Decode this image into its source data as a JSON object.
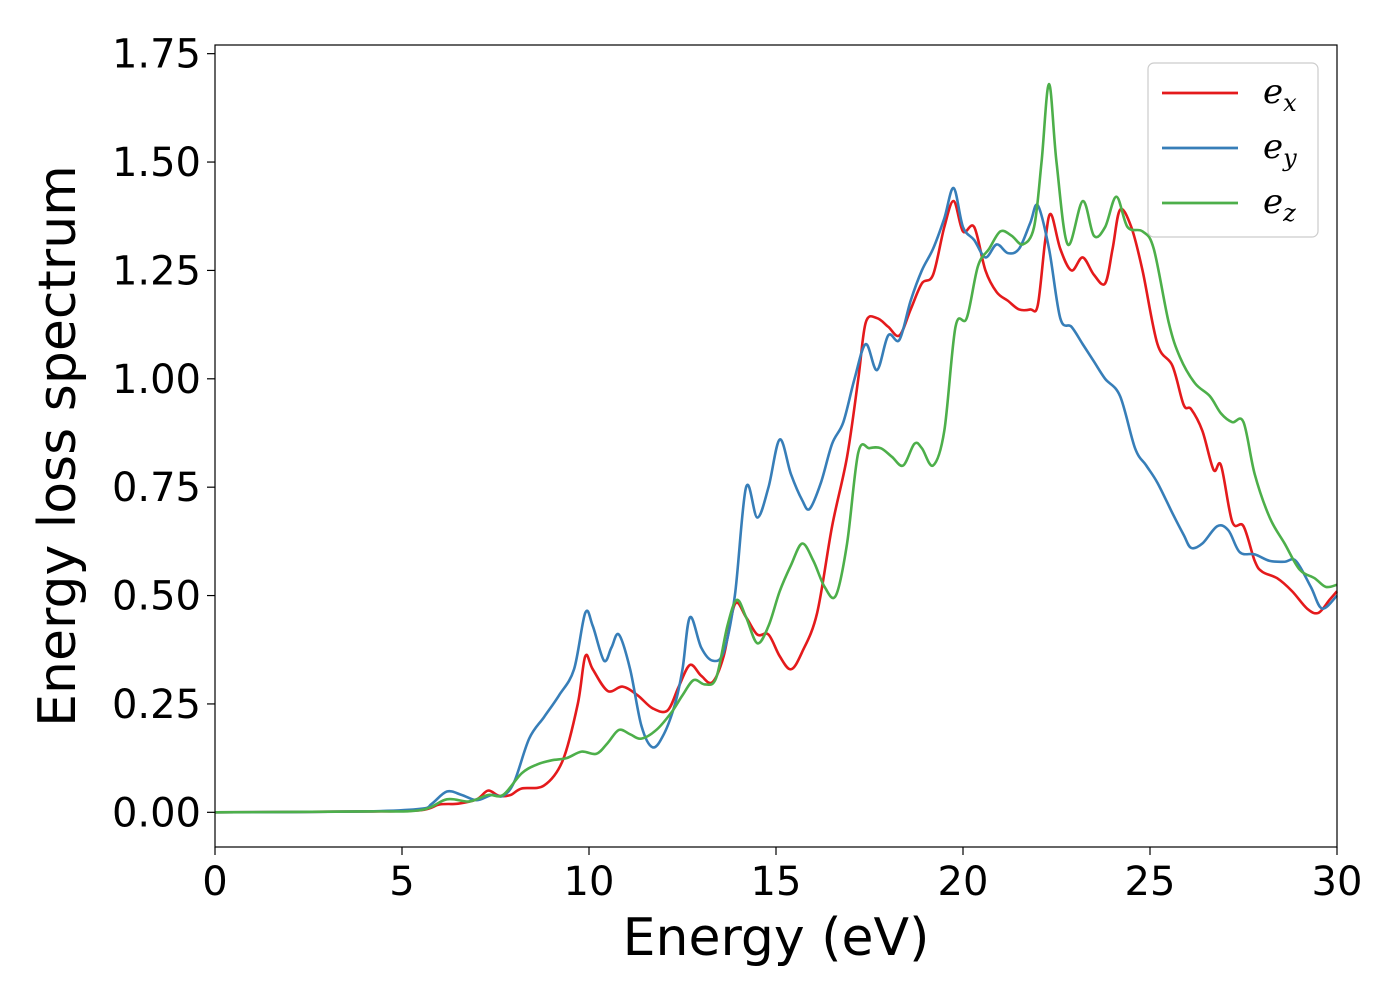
{
  "chart_data": {
    "type": "line",
    "title": "",
    "xlabel": "Energy (eV)",
    "ylabel": "Energy loss spectrum",
    "xlim": [
      0,
      30
    ],
    "ylim": [
      -0.08,
      1.77
    ],
    "xticks": [
      0,
      5,
      10,
      15,
      20,
      25,
      30
    ],
    "xtick_labels": [
      "0",
      "5",
      "10",
      "15",
      "20",
      "25",
      "30"
    ],
    "yticks": [
      0.0,
      0.25,
      0.5,
      0.75,
      1.0,
      1.25,
      1.5,
      1.75
    ],
    "ytick_labels": [
      "0.00",
      "0.25",
      "0.50",
      "0.75",
      "1.00",
      "1.25",
      "1.50",
      "1.75"
    ],
    "grid": false,
    "legend_position": "top-right",
    "series": [
      {
        "name": "e_x",
        "legend_base": "e",
        "legend_sub": "x",
        "color": "#e41a1c",
        "points": [
          [
            0,
            0
          ],
          [
            4,
            0.002
          ],
          [
            5.5,
            0.005
          ],
          [
            6,
            0.018
          ],
          [
            6.5,
            0.02
          ],
          [
            7,
            0.03
          ],
          [
            7.3,
            0.05
          ],
          [
            7.6,
            0.038
          ],
          [
            7.9,
            0.04
          ],
          [
            8.2,
            0.055
          ],
          [
            8.8,
            0.062
          ],
          [
            9.3,
            0.12
          ],
          [
            9.7,
            0.25
          ],
          [
            9.9,
            0.36
          ],
          [
            10.1,
            0.33
          ],
          [
            10.5,
            0.28
          ],
          [
            10.9,
            0.29
          ],
          [
            11.3,
            0.27
          ],
          [
            11.7,
            0.24
          ],
          [
            12.1,
            0.235
          ],
          [
            12.4,
            0.29
          ],
          [
            12.7,
            0.34
          ],
          [
            13.0,
            0.315
          ],
          [
            13.3,
            0.3
          ],
          [
            13.6,
            0.36
          ],
          [
            13.9,
            0.48
          ],
          [
            14.2,
            0.45
          ],
          [
            14.5,
            0.41
          ],
          [
            14.8,
            0.41
          ],
          [
            15.1,
            0.36
          ],
          [
            15.4,
            0.33
          ],
          [
            15.7,
            0.37
          ],
          [
            16.1,
            0.46
          ],
          [
            16.5,
            0.66
          ],
          [
            16.9,
            0.82
          ],
          [
            17.2,
            1.0
          ],
          [
            17.4,
            1.13
          ],
          [
            17.7,
            1.14
          ],
          [
            18.0,
            1.12
          ],
          [
            18.3,
            1.1
          ],
          [
            18.6,
            1.16
          ],
          [
            18.9,
            1.22
          ],
          [
            19.2,
            1.24
          ],
          [
            19.5,
            1.35
          ],
          [
            19.75,
            1.41
          ],
          [
            20.0,
            1.34
          ],
          [
            20.3,
            1.35
          ],
          [
            20.6,
            1.25
          ],
          [
            20.9,
            1.2
          ],
          [
            21.2,
            1.18
          ],
          [
            21.5,
            1.16
          ],
          [
            21.8,
            1.16
          ],
          [
            22.0,
            1.17
          ],
          [
            22.2,
            1.32
          ],
          [
            22.35,
            1.38
          ],
          [
            22.6,
            1.3
          ],
          [
            22.9,
            1.25
          ],
          [
            23.2,
            1.28
          ],
          [
            23.5,
            1.24
          ],
          [
            23.8,
            1.22
          ],
          [
            24.0,
            1.3
          ],
          [
            24.2,
            1.39
          ],
          [
            24.5,
            1.35
          ],
          [
            24.8,
            1.25
          ],
          [
            25.2,
            1.08
          ],
          [
            25.6,
            1.03
          ],
          [
            25.9,
            0.94
          ],
          [
            26.1,
            0.93
          ],
          [
            26.4,
            0.88
          ],
          [
            26.7,
            0.79
          ],
          [
            26.9,
            0.8
          ],
          [
            27.2,
            0.67
          ],
          [
            27.5,
            0.66
          ],
          [
            27.8,
            0.58
          ],
          [
            28.0,
            0.555
          ],
          [
            28.4,
            0.54
          ],
          [
            28.8,
            0.51
          ],
          [
            29.2,
            0.47
          ],
          [
            29.5,
            0.46
          ],
          [
            29.8,
            0.49
          ],
          [
            30,
            0.51
          ]
        ]
      },
      {
        "name": "e_y",
        "legend_base": "e",
        "legend_sub": "y",
        "color": "#377eb8",
        "points": [
          [
            0,
            0
          ],
          [
            4,
            0.002
          ],
          [
            5.5,
            0.008
          ],
          [
            5.8,
            0.02
          ],
          [
            6.2,
            0.048
          ],
          [
            6.6,
            0.04
          ],
          [
            7.0,
            0.028
          ],
          [
            7.4,
            0.04
          ],
          [
            7.7,
            0.038
          ],
          [
            8.0,
            0.07
          ],
          [
            8.4,
            0.17
          ],
          [
            8.8,
            0.22
          ],
          [
            9.2,
            0.27
          ],
          [
            9.6,
            0.33
          ],
          [
            9.9,
            0.46
          ],
          [
            10.1,
            0.43
          ],
          [
            10.4,
            0.35
          ],
          [
            10.6,
            0.38
          ],
          [
            10.8,
            0.41
          ],
          [
            11.1,
            0.33
          ],
          [
            11.4,
            0.2
          ],
          [
            11.7,
            0.15
          ],
          [
            12.0,
            0.18
          ],
          [
            12.3,
            0.25
          ],
          [
            12.5,
            0.33
          ],
          [
            12.7,
            0.45
          ],
          [
            13.0,
            0.38
          ],
          [
            13.3,
            0.35
          ],
          [
            13.6,
            0.37
          ],
          [
            13.9,
            0.5
          ],
          [
            14.2,
            0.75
          ],
          [
            14.5,
            0.68
          ],
          [
            14.8,
            0.75
          ],
          [
            15.1,
            0.86
          ],
          [
            15.4,
            0.78
          ],
          [
            15.7,
            0.72
          ],
          [
            15.9,
            0.7
          ],
          [
            16.2,
            0.76
          ],
          [
            16.5,
            0.85
          ],
          [
            16.8,
            0.9
          ],
          [
            17.1,
            1.0
          ],
          [
            17.4,
            1.08
          ],
          [
            17.7,
            1.02
          ],
          [
            18.0,
            1.1
          ],
          [
            18.3,
            1.09
          ],
          [
            18.6,
            1.18
          ],
          [
            18.9,
            1.25
          ],
          [
            19.2,
            1.3
          ],
          [
            19.5,
            1.37
          ],
          [
            19.75,
            1.44
          ],
          [
            20.0,
            1.35
          ],
          [
            20.3,
            1.32
          ],
          [
            20.6,
            1.28
          ],
          [
            20.9,
            1.31
          ],
          [
            21.2,
            1.29
          ],
          [
            21.5,
            1.3
          ],
          [
            21.8,
            1.36
          ],
          [
            22.0,
            1.4
          ],
          [
            22.3,
            1.3
          ],
          [
            22.6,
            1.14
          ],
          [
            22.9,
            1.12
          ],
          [
            23.2,
            1.08
          ],
          [
            23.5,
            1.04
          ],
          [
            23.8,
            1.0
          ],
          [
            24.2,
            0.96
          ],
          [
            24.6,
            0.84
          ],
          [
            24.9,
            0.8
          ],
          [
            25.2,
            0.76
          ],
          [
            25.6,
            0.69
          ],
          [
            25.9,
            0.64
          ],
          [
            26.1,
            0.61
          ],
          [
            26.4,
            0.62
          ],
          [
            26.8,
            0.66
          ],
          [
            27.1,
            0.65
          ],
          [
            27.4,
            0.6
          ],
          [
            27.8,
            0.595
          ],
          [
            28.2,
            0.58
          ],
          [
            28.6,
            0.578
          ],
          [
            28.9,
            0.58
          ],
          [
            29.3,
            0.52
          ],
          [
            29.6,
            0.47
          ],
          [
            30,
            0.5
          ]
        ]
      },
      {
        "name": "e_z",
        "legend_base": "e",
        "legend_sub": "z",
        "color": "#4daf4a",
        "points": [
          [
            0,
            0
          ],
          [
            4,
            0.002
          ],
          [
            5.5,
            0.005
          ],
          [
            6.2,
            0.03
          ],
          [
            6.8,
            0.025
          ],
          [
            7.3,
            0.04
          ],
          [
            7.7,
            0.04
          ],
          [
            8.2,
            0.09
          ],
          [
            8.6,
            0.11
          ],
          [
            9.0,
            0.12
          ],
          [
            9.4,
            0.125
          ],
          [
            9.8,
            0.14
          ],
          [
            10.2,
            0.135
          ],
          [
            10.5,
            0.16
          ],
          [
            10.8,
            0.19
          ],
          [
            11.1,
            0.18
          ],
          [
            11.4,
            0.17
          ],
          [
            11.8,
            0.19
          ],
          [
            12.2,
            0.23
          ],
          [
            12.5,
            0.27
          ],
          [
            12.8,
            0.305
          ],
          [
            13.1,
            0.295
          ],
          [
            13.4,
            0.31
          ],
          [
            13.7,
            0.43
          ],
          [
            13.95,
            0.49
          ],
          [
            14.2,
            0.45
          ],
          [
            14.5,
            0.39
          ],
          [
            14.8,
            0.43
          ],
          [
            15.1,
            0.51
          ],
          [
            15.4,
            0.57
          ],
          [
            15.7,
            0.62
          ],
          [
            16.0,
            0.58
          ],
          [
            16.3,
            0.52
          ],
          [
            16.6,
            0.5
          ],
          [
            16.9,
            0.62
          ],
          [
            17.2,
            0.83
          ],
          [
            17.5,
            0.84
          ],
          [
            17.8,
            0.84
          ],
          [
            18.1,
            0.82
          ],
          [
            18.4,
            0.8
          ],
          [
            18.7,
            0.85
          ],
          [
            18.9,
            0.84
          ],
          [
            19.2,
            0.8
          ],
          [
            19.5,
            0.88
          ],
          [
            19.8,
            1.12
          ],
          [
            20.1,
            1.14
          ],
          [
            20.4,
            1.26
          ],
          [
            20.7,
            1.3
          ],
          [
            21.0,
            1.34
          ],
          [
            21.3,
            1.33
          ],
          [
            21.6,
            1.31
          ],
          [
            21.9,
            1.35
          ],
          [
            22.1,
            1.5
          ],
          [
            22.3,
            1.68
          ],
          [
            22.5,
            1.5
          ],
          [
            22.8,
            1.31
          ],
          [
            23.2,
            1.41
          ],
          [
            23.5,
            1.33
          ],
          [
            23.8,
            1.35
          ],
          [
            24.1,
            1.42
          ],
          [
            24.4,
            1.35
          ],
          [
            24.8,
            1.34
          ],
          [
            25.1,
            1.3
          ],
          [
            25.5,
            1.13
          ],
          [
            25.8,
            1.05
          ],
          [
            26.2,
            0.99
          ],
          [
            26.6,
            0.96
          ],
          [
            26.9,
            0.92
          ],
          [
            27.2,
            0.9
          ],
          [
            27.5,
            0.9
          ],
          [
            27.8,
            0.78
          ],
          [
            28.2,
            0.68
          ],
          [
            28.6,
            0.62
          ],
          [
            29.0,
            0.56
          ],
          [
            29.4,
            0.54
          ],
          [
            29.7,
            0.52
          ],
          [
            30,
            0.525
          ]
        ]
      }
    ]
  }
}
